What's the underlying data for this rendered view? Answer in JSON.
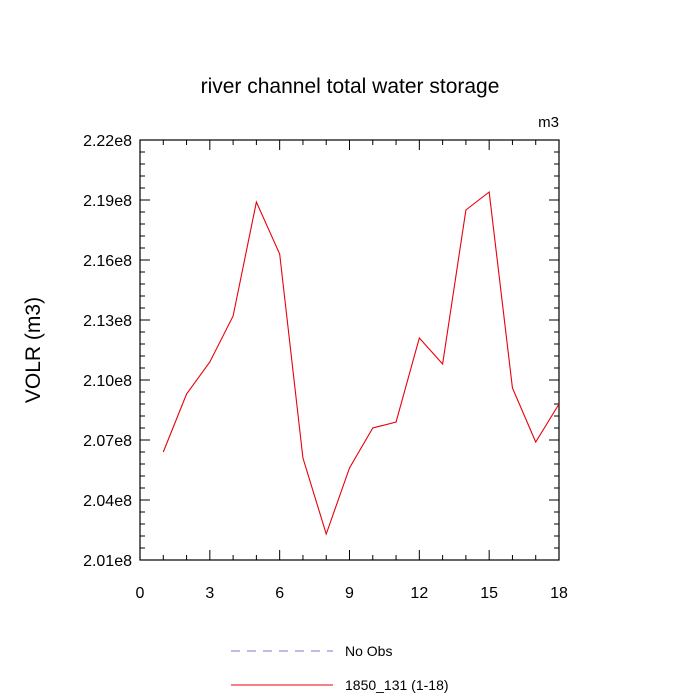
{
  "chart_data": {
    "type": "line",
    "title": "river channel total water storage",
    "units_label": "m3",
    "ylabel": "VOLR  (m3)",
    "xlabel": "",
    "xlim": [
      0,
      18
    ],
    "ylim": [
      201000000,
      222000000
    ],
    "x_ticks": [
      0,
      3,
      6,
      9,
      12,
      15,
      18
    ],
    "x_tick_labels": [
      "0",
      "3",
      "6",
      "9",
      "12",
      "15",
      "18"
    ],
    "y_ticks": [
      201000000,
      204000000,
      207000000,
      210000000,
      213000000,
      216000000,
      219000000,
      222000000
    ],
    "y_tick_labels": [
      "2.01e8",
      "2.04e8",
      "2.07e8",
      "2.10e8",
      "2.13e8",
      "2.16e8",
      "2.19e8",
      "2.22e8"
    ],
    "grid": false,
    "legend_placement": "bottom",
    "series": [
      {
        "name": "No Obs",
        "color": "#7b7bd6",
        "style": "dashed",
        "x": [],
        "values": []
      },
      {
        "name": "1850_131 (1-18)",
        "color": "#e8000b",
        "style": "solid",
        "x": [
          1,
          2,
          3,
          4,
          5,
          6,
          7,
          8,
          9,
          10,
          11,
          12,
          13,
          14,
          15,
          16,
          17,
          18
        ],
        "values": [
          206400000,
          209300000,
          210900000,
          213200000,
          218900000,
          216300000,
          206100000,
          202300000,
          205600000,
          207600000,
          207900000,
          212100000,
          210800000,
          218500000,
          219400000,
          209600000,
          206900000,
          208800000
        ]
      }
    ]
  }
}
